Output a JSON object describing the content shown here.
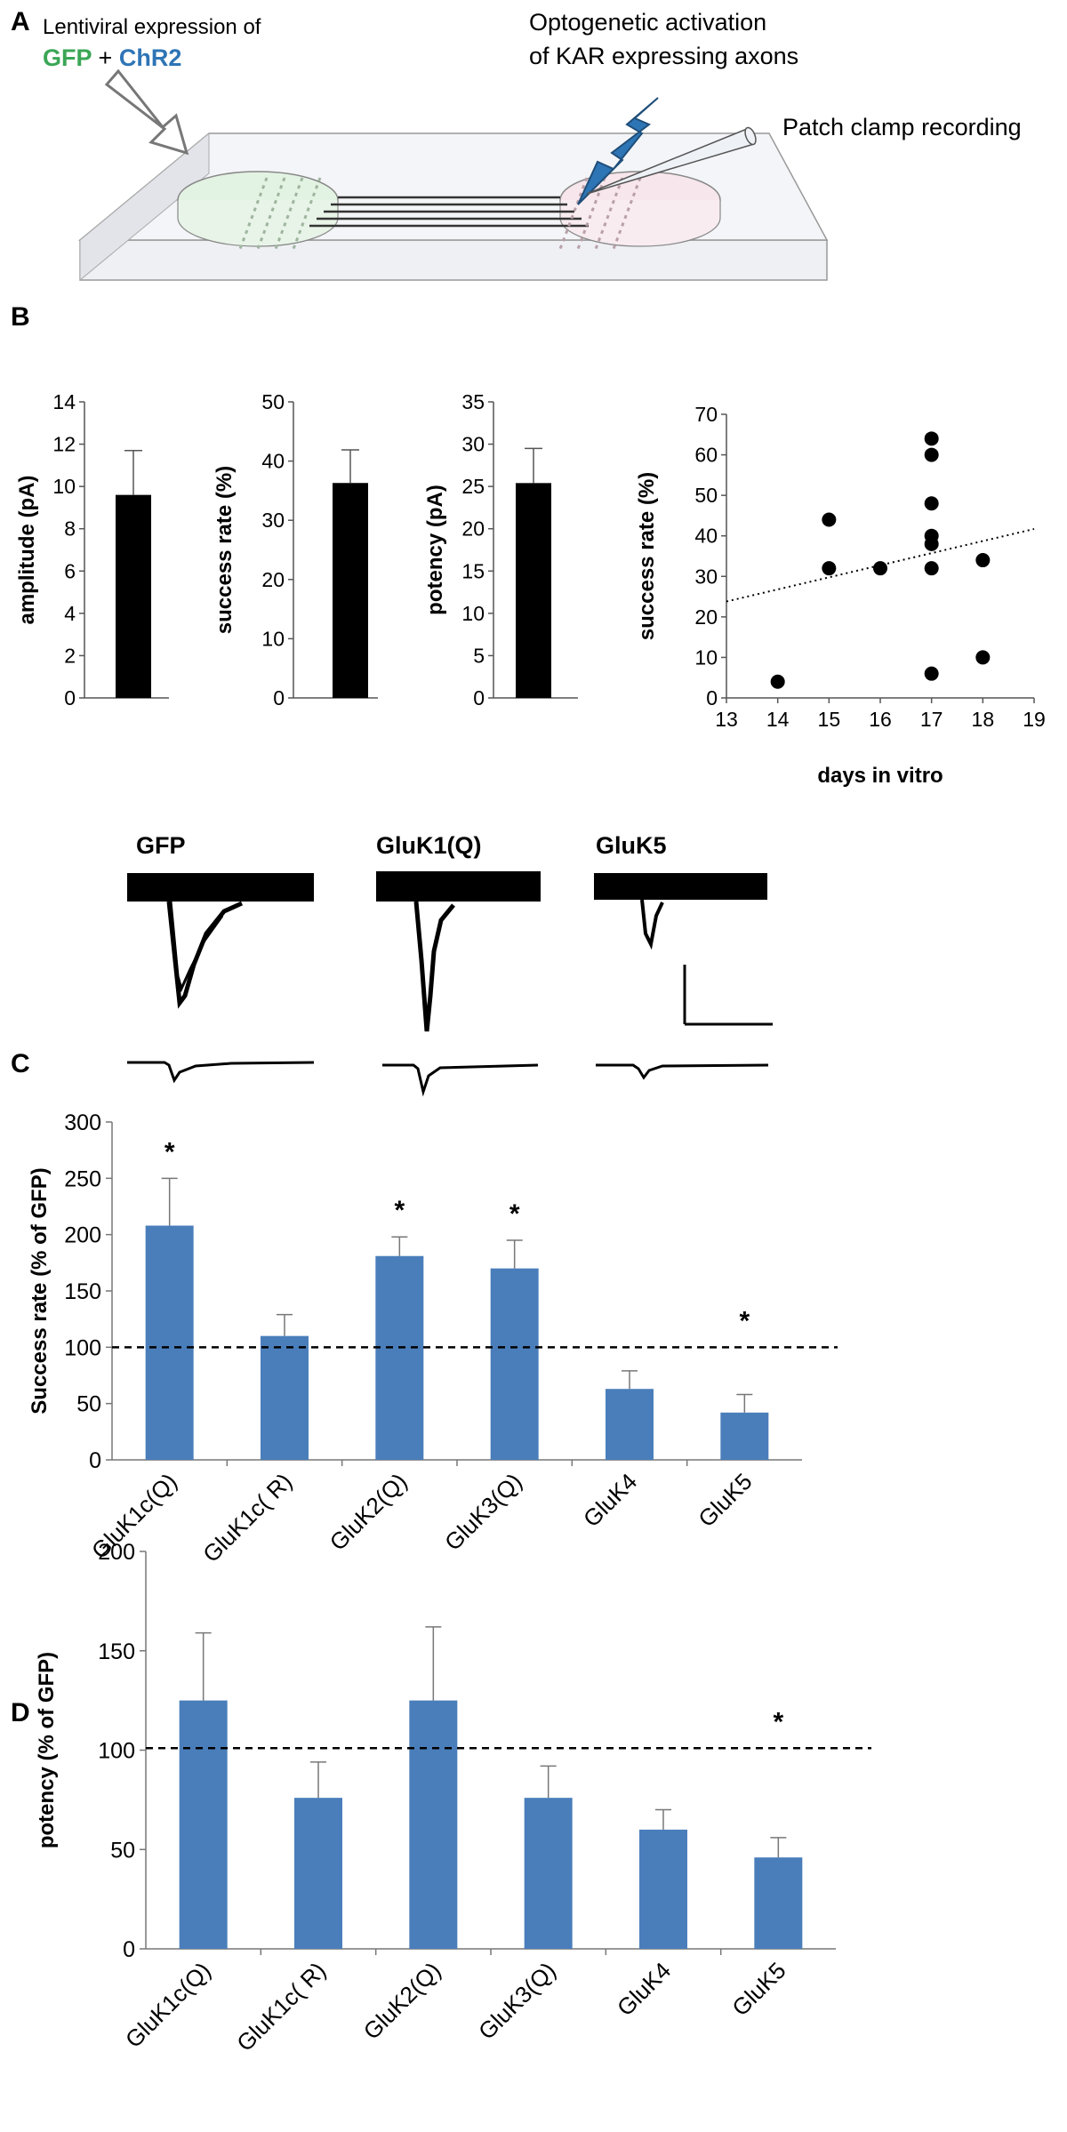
{
  "panels": {
    "a": "A",
    "b": "B",
    "c": "C",
    "d": "D"
  },
  "colors": {
    "bar_black": "#000000",
    "bar_blue": "#4a7ebb",
    "gfp": "#3aa655",
    "chr2": "#2e75b6"
  },
  "schematic": {
    "lenti_label": "Lentiviral expression of",
    "gfp": "GFP",
    "plus": "+",
    "chr2": "ChR2",
    "opto_line1": "Optogenetic activation",
    "opto_line2": "of KAR expressing axons",
    "patch": "Patch clamp recording"
  },
  "traces": {
    "labels": [
      "GFP",
      "GluK1(Q)",
      "GluK5"
    ]
  },
  "chart_data": [
    {
      "type": "bar",
      "panel": "B",
      "categories": [
        ""
      ],
      "values": [
        9.6
      ],
      "errors": [
        2.1
      ],
      "xlabel": "",
      "ylabel": "amplitude (pA)",
      "ylim": [
        0,
        14
      ],
      "yticks": [
        "0",
        "2",
        "4",
        "6",
        "8",
        "10",
        "12",
        "14"
      ]
    },
    {
      "type": "bar",
      "panel": "B",
      "categories": [
        ""
      ],
      "values": [
        36.3
      ],
      "errors": [
        5.6
      ],
      "xlabel": "",
      "ylabel": "success rate (%)",
      "ylim": [
        0,
        50
      ],
      "yticks": [
        "0",
        "10",
        "20",
        "30",
        "40",
        "50"
      ]
    },
    {
      "type": "bar",
      "panel": "B",
      "categories": [
        ""
      ],
      "values": [
        25.4
      ],
      "errors": [
        4.1
      ],
      "xlabel": "",
      "ylabel": "potency (pA)",
      "ylim": [
        0,
        35
      ],
      "yticks": [
        "0",
        "5",
        "10",
        "15",
        "20",
        "25",
        "30",
        "35"
      ]
    },
    {
      "type": "scatter",
      "panel": "B",
      "x": [
        14,
        15,
        15,
        16,
        17,
        17,
        17,
        17,
        17,
        17,
        17,
        18,
        18
      ],
      "y": [
        4,
        44,
        32,
        32,
        64,
        60,
        48,
        40,
        38,
        32,
        6,
        34,
        10
      ],
      "trendline": {
        "type": "linear",
        "x": [
          13,
          19
        ],
        "y": [
          23.8,
          41.7
        ]
      },
      "xlabel": "days in vitro",
      "ylabel": "success rate (%)",
      "xlim": [
        13,
        19
      ],
      "ylim": [
        0,
        70
      ],
      "xticks": [
        "13",
        "14",
        "15",
        "16",
        "17",
        "18",
        "19"
      ],
      "yticks": [
        "0",
        "10",
        "20",
        "30",
        "40",
        "50",
        "60",
        "70"
      ]
    },
    {
      "type": "bar",
      "panel": "C",
      "categories": [
        "GluK1c(Q)",
        "GluK1c( R)",
        "GluK2(Q)",
        "GluK3(Q)",
        "GluK4",
        "GluK5"
      ],
      "values": [
        208,
        110,
        181,
        170,
        63,
        42
      ],
      "errors": [
        42,
        19,
        17,
        25,
        16,
        16
      ],
      "significant": [
        "*",
        "",
        "*",
        "*",
        "",
        "*"
      ],
      "reference_line": 100,
      "xlabel": "",
      "ylabel": "Success rate (% of GFP)",
      "ylim": [
        0,
        300
      ],
      "yticks": [
        "0",
        "50",
        "100",
        "150",
        "200",
        "250",
        "300"
      ]
    },
    {
      "type": "bar",
      "panel": "D",
      "categories": [
        "GluK1c(Q)",
        "GluK1c( R)",
        "GluK2(Q)",
        "GluK3(Q)",
        "GluK4",
        "GluK5"
      ],
      "values": [
        125,
        76,
        125,
        76,
        60,
        46
      ],
      "errors": [
        34,
        18,
        37,
        16,
        10,
        10
      ],
      "significant": [
        "",
        "",
        "",
        "",
        "",
        "*"
      ],
      "reference_line": 101,
      "xlabel": "",
      "ylabel": "potency (% of GFP)",
      "ylim": [
        0,
        200
      ],
      "yticks": [
        "0",
        "50",
        "100",
        "150",
        "200"
      ]
    }
  ]
}
